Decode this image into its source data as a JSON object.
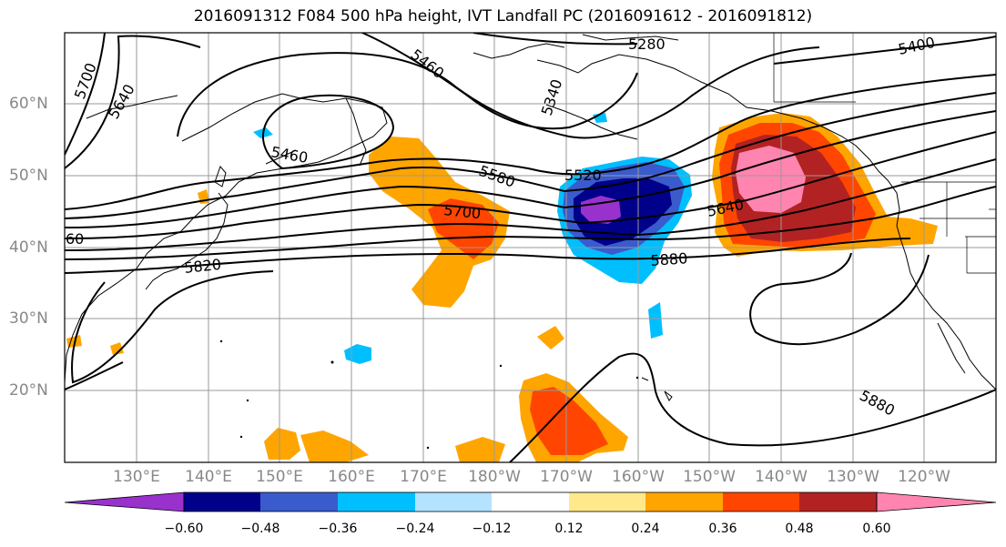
{
  "title": "2016091312 F084 500 hPa height, IVT Landfall PC (2016091612 - 2016091812)",
  "lon_labels": [
    "130°E",
    "140°E",
    "150°E",
    "160°E",
    "170°E",
    "180°W",
    "170°W",
    "160°W",
    "150°W",
    "140°W",
    "130°W",
    "120°W"
  ],
  "lat_labels": [
    "60°N",
    "50°N",
    "40°N",
    "30°N",
    "20°N"
  ],
  "contour_labels": [
    "5700",
    "5640",
    "5460",
    "5460",
    "5340",
    "5280",
    "5400",
    "5580",
    "5520",
    "5700",
    "5640",
    "5820",
    "5880",
    "5880",
    "60"
  ],
  "colorbar": {
    "ticks": [
      "−0.60",
      "−0.48",
      "−0.36",
      "−0.24",
      "−0.12",
      "0.12",
      "0.24",
      "0.36",
      "0.48",
      "0.60"
    ],
    "colors": [
      "#9932cc",
      "#00008b",
      "#3a5bcc",
      "#00bfff",
      "#b3e3ff",
      "#ffffff",
      "#ffe98a",
      "#ffa500",
      "#ff4500",
      "#b22222",
      "#ff85b0"
    ]
  }
}
